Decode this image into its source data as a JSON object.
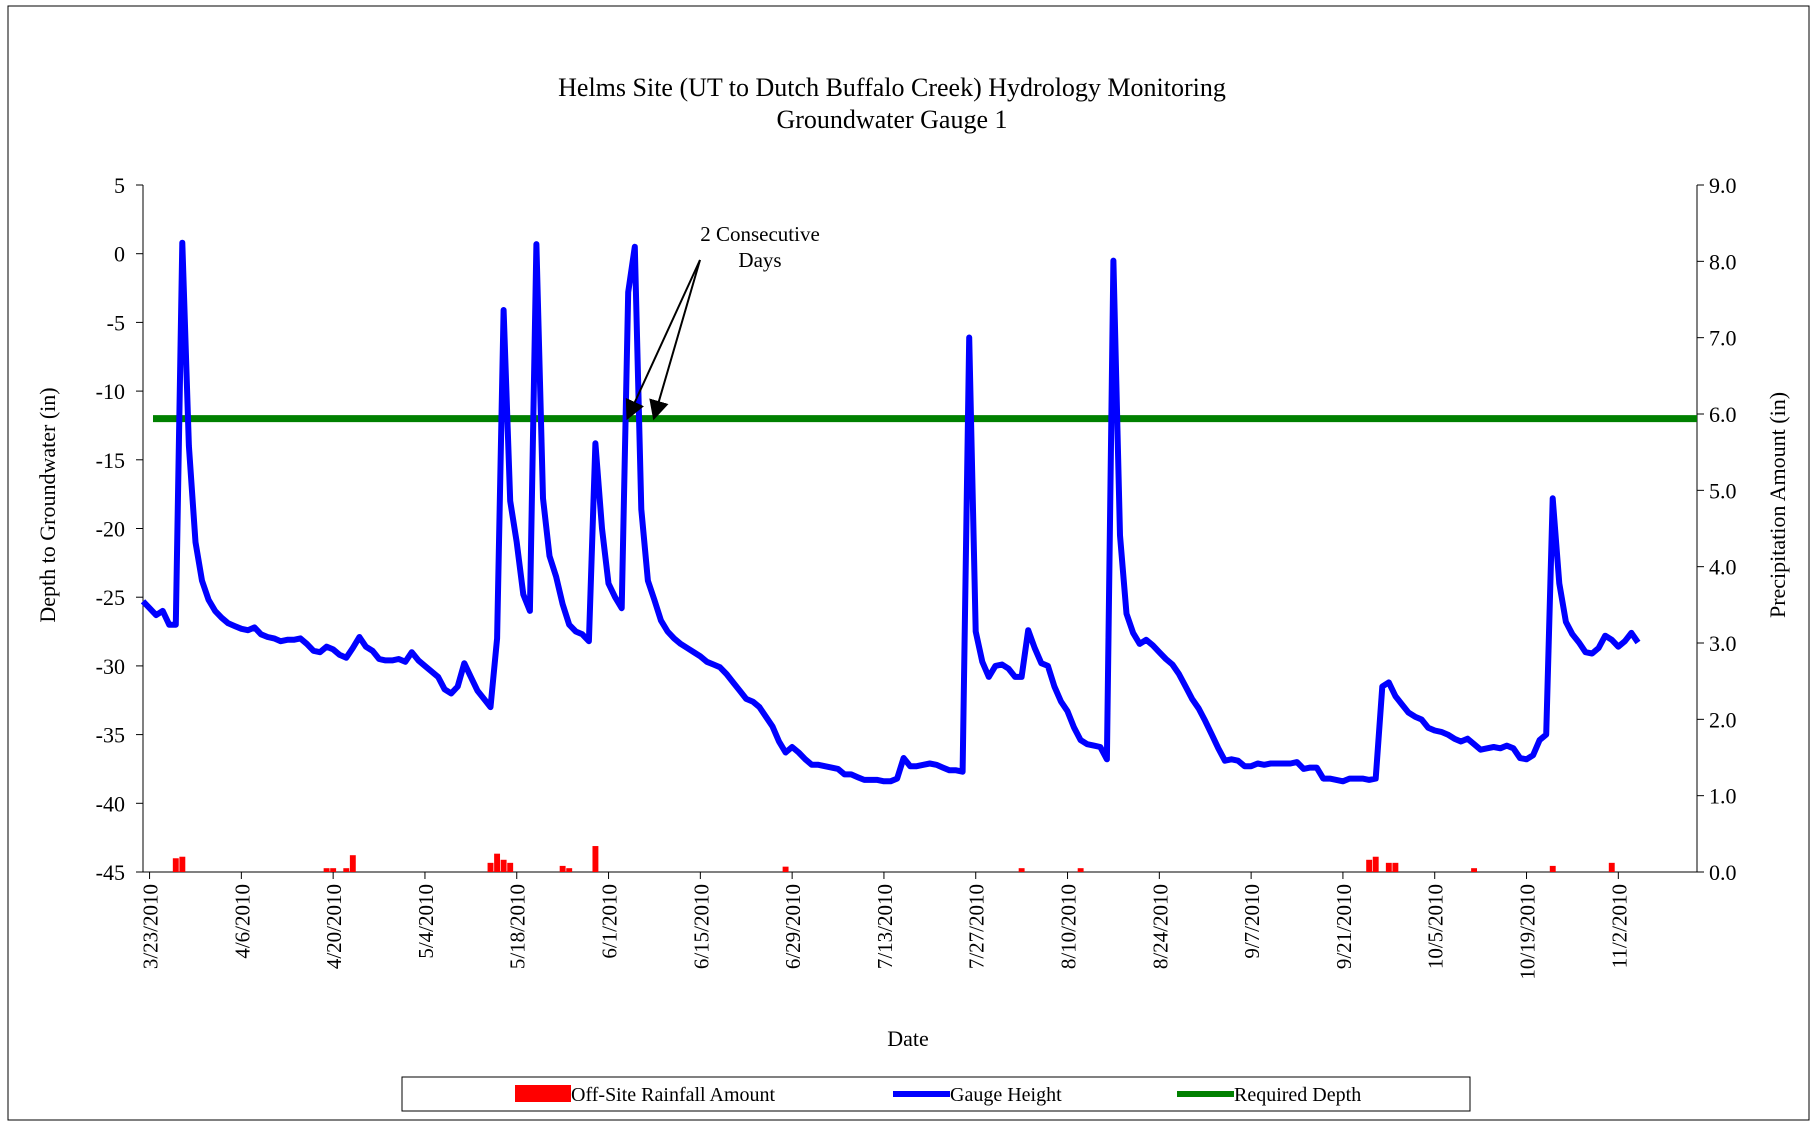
{
  "chart_data": {
    "type": "line",
    "title": "Helms Site (UT to Dutch Buffalo Creek) Hydrology Monitoring",
    "subtitle": "Groundwater Gauge 1",
    "xlabel": "Date",
    "ylabel": "Depth to Groundwater (in)",
    "y2label": "Precipitation Amount (in)",
    "ylim": [
      -45,
      5
    ],
    "y2lim": [
      0,
      9
    ],
    "yticks": [
      "5",
      "0",
      "-5",
      "-10",
      "-15",
      "-20",
      "-25",
      "-30",
      "-35",
      "-40",
      "-45"
    ],
    "y2ticks": [
      "9.0",
      "8.0",
      "7.0",
      "6.0",
      "5.0",
      "4.0",
      "3.0",
      "2.0",
      "1.0",
      "0.0"
    ],
    "xticks": [
      "3/23/2010",
      "4/6/2010",
      "4/20/2010",
      "5/4/2010",
      "5/18/2010",
      "6/1/2010",
      "6/15/2010",
      "6/29/2010",
      "7/13/2010",
      "7/27/2010",
      "8/10/2010",
      "8/24/2010",
      "9/7/2010",
      "9/21/2010",
      "10/5/2010",
      "10/19/2010",
      "11/2/2010"
    ],
    "xrange": [
      "2010-03-22",
      "2010-11-14"
    ],
    "grid": false,
    "legend_position": "bottom",
    "legend": {
      "rain": "Off-Site Rainfall Amount",
      "gauge": "Gauge Height",
      "required": "Required Depth"
    },
    "annotation": {
      "line1": "2 Consecutive",
      "line2": "Days",
      "targets": [
        "2010-06-04",
        "2010-06-08"
      ]
    },
    "series": [
      {
        "name": "Gauge Height",
        "color": "#0000ff",
        "axis": "left",
        "points": [
          [
            "2010-03-22",
            -25.3
          ],
          [
            "2010-03-23",
            -25.8
          ],
          [
            "2010-03-24",
            -26.3
          ],
          [
            "2010-03-25",
            -26.0
          ],
          [
            "2010-03-26",
            -27.0
          ],
          [
            "2010-03-27",
            -27.0
          ],
          [
            "2010-03-28",
            0.8
          ],
          [
            "2010-03-29",
            -14.0
          ],
          [
            "2010-03-30",
            -21.0
          ],
          [
            "2010-03-31",
            -23.8
          ],
          [
            "2010-04-01",
            -25.2
          ],
          [
            "2010-04-02",
            -26.0
          ],
          [
            "2010-04-03",
            -26.5
          ],
          [
            "2010-04-04",
            -26.9
          ],
          [
            "2010-04-05",
            -27.1
          ],
          [
            "2010-04-06",
            -27.3
          ],
          [
            "2010-04-07",
            -27.4
          ],
          [
            "2010-04-08",
            -27.2
          ],
          [
            "2010-04-09",
            -27.7
          ],
          [
            "2010-04-10",
            -27.9
          ],
          [
            "2010-04-11",
            -28.0
          ],
          [
            "2010-04-12",
            -28.2
          ],
          [
            "2010-04-13",
            -28.1
          ],
          [
            "2010-04-14",
            -28.1
          ],
          [
            "2010-04-15",
            -28.0
          ],
          [
            "2010-04-16",
            -28.4
          ],
          [
            "2010-04-17",
            -28.9
          ],
          [
            "2010-04-18",
            -29.0
          ],
          [
            "2010-04-19",
            -28.6
          ],
          [
            "2010-04-20",
            -28.8
          ],
          [
            "2010-04-21",
            -29.2
          ],
          [
            "2010-04-22",
            -29.4
          ],
          [
            "2010-04-23",
            -28.7
          ],
          [
            "2010-04-24",
            -27.9
          ],
          [
            "2010-04-25",
            -28.6
          ],
          [
            "2010-04-26",
            -28.9
          ],
          [
            "2010-04-27",
            -29.5
          ],
          [
            "2010-04-28",
            -29.6
          ],
          [
            "2010-04-29",
            -29.6
          ],
          [
            "2010-04-30",
            -29.5
          ],
          [
            "2010-05-01",
            -29.7
          ],
          [
            "2010-05-02",
            -29.0
          ],
          [
            "2010-05-03",
            -29.6
          ],
          [
            "2010-05-04",
            -30.0
          ],
          [
            "2010-05-05",
            -30.4
          ],
          [
            "2010-05-06",
            -30.8
          ],
          [
            "2010-05-07",
            -31.7
          ],
          [
            "2010-05-08",
            -32.0
          ],
          [
            "2010-05-09",
            -31.5
          ],
          [
            "2010-05-10",
            -29.8
          ],
          [
            "2010-05-11",
            -30.8
          ],
          [
            "2010-05-12",
            -31.8
          ],
          [
            "2010-05-13",
            -32.4
          ],
          [
            "2010-05-14",
            -33.0
          ],
          [
            "2010-05-15",
            -28.0
          ],
          [
            "2010-05-16",
            -4.1
          ],
          [
            "2010-05-17",
            -18.0
          ],
          [
            "2010-05-18",
            -21.0
          ],
          [
            "2010-05-19",
            -24.8
          ],
          [
            "2010-05-20",
            -26.0
          ],
          [
            "2010-05-21",
            0.7
          ],
          [
            "2010-05-22",
            -17.8
          ],
          [
            "2010-05-23",
            -22.0
          ],
          [
            "2010-05-24",
            -23.5
          ],
          [
            "2010-05-25",
            -25.5
          ],
          [
            "2010-05-26",
            -27.0
          ],
          [
            "2010-05-27",
            -27.5
          ],
          [
            "2010-05-28",
            -27.7
          ],
          [
            "2010-05-29",
            -28.2
          ],
          [
            "2010-05-30",
            -13.8
          ],
          [
            "2010-05-31",
            -20.0
          ],
          [
            "2010-06-01",
            -24.0
          ],
          [
            "2010-06-02",
            -25.0
          ],
          [
            "2010-06-03",
            -25.8
          ],
          [
            "2010-06-04",
            -2.8
          ],
          [
            "2010-06-05",
            0.5
          ],
          [
            "2010-06-06",
            -18.6
          ],
          [
            "2010-06-07",
            -23.8
          ],
          [
            "2010-06-08",
            -25.2
          ],
          [
            "2010-06-09",
            -26.7
          ],
          [
            "2010-06-10",
            -27.5
          ],
          [
            "2010-06-11",
            -28.0
          ],
          [
            "2010-06-12",
            -28.4
          ],
          [
            "2010-06-13",
            -28.7
          ],
          [
            "2010-06-14",
            -29.0
          ],
          [
            "2010-06-15",
            -29.3
          ],
          [
            "2010-06-16",
            -29.7
          ],
          [
            "2010-06-17",
            -29.9
          ],
          [
            "2010-06-18",
            -30.1
          ],
          [
            "2010-06-19",
            -30.6
          ],
          [
            "2010-06-20",
            -31.2
          ],
          [
            "2010-06-21",
            -31.8
          ],
          [
            "2010-06-22",
            -32.4
          ],
          [
            "2010-06-23",
            -32.6
          ],
          [
            "2010-06-24",
            -33.0
          ],
          [
            "2010-06-25",
            -33.7
          ],
          [
            "2010-06-26",
            -34.4
          ],
          [
            "2010-06-27",
            -35.5
          ],
          [
            "2010-06-28",
            -36.3
          ],
          [
            "2010-06-29",
            -35.9
          ],
          [
            "2010-06-30",
            -36.3
          ],
          [
            "2010-07-01",
            -36.8
          ],
          [
            "2010-07-02",
            -37.2
          ],
          [
            "2010-07-03",
            -37.2
          ],
          [
            "2010-07-04",
            -37.3
          ],
          [
            "2010-07-05",
            -37.4
          ],
          [
            "2010-07-06",
            -37.5
          ],
          [
            "2010-07-07",
            -37.9
          ],
          [
            "2010-07-08",
            -37.9
          ],
          [
            "2010-07-09",
            -38.1
          ],
          [
            "2010-07-10",
            -38.3
          ],
          [
            "2010-07-11",
            -38.3
          ],
          [
            "2010-07-12",
            -38.3
          ],
          [
            "2010-07-13",
            -38.4
          ],
          [
            "2010-07-14",
            -38.4
          ],
          [
            "2010-07-15",
            -38.2
          ],
          [
            "2010-07-16",
            -36.7
          ],
          [
            "2010-07-17",
            -37.3
          ],
          [
            "2010-07-18",
            -37.3
          ],
          [
            "2010-07-19",
            -37.2
          ],
          [
            "2010-07-20",
            -37.1
          ],
          [
            "2010-07-21",
            -37.2
          ],
          [
            "2010-07-22",
            -37.4
          ],
          [
            "2010-07-23",
            -37.6
          ],
          [
            "2010-07-24",
            -37.6
          ],
          [
            "2010-07-25",
            -37.7
          ],
          [
            "2010-07-26",
            -6.1
          ],
          [
            "2010-07-27",
            -27.5
          ],
          [
            "2010-07-28",
            -29.7
          ],
          [
            "2010-07-29",
            -30.8
          ],
          [
            "2010-07-30",
            -30.0
          ],
          [
            "2010-07-31",
            -29.9
          ],
          [
            "2010-08-01",
            -30.2
          ],
          [
            "2010-08-02",
            -30.8
          ],
          [
            "2010-08-03",
            -30.8
          ],
          [
            "2010-08-04",
            -27.4
          ],
          [
            "2010-08-05",
            -28.7
          ],
          [
            "2010-08-06",
            -29.8
          ],
          [
            "2010-08-07",
            -30.0
          ],
          [
            "2010-08-08",
            -31.5
          ],
          [
            "2010-08-09",
            -32.6
          ],
          [
            "2010-08-10",
            -33.3
          ],
          [
            "2010-08-11",
            -34.5
          ],
          [
            "2010-08-12",
            -35.4
          ],
          [
            "2010-08-13",
            -35.7
          ],
          [
            "2010-08-14",
            -35.8
          ],
          [
            "2010-08-15",
            -35.9
          ],
          [
            "2010-08-16",
            -36.8
          ],
          [
            "2010-08-17",
            -0.5
          ],
          [
            "2010-08-18",
            -20.5
          ],
          [
            "2010-08-19",
            -26.2
          ],
          [
            "2010-08-20",
            -27.6
          ],
          [
            "2010-08-21",
            -28.4
          ],
          [
            "2010-08-22",
            -28.1
          ],
          [
            "2010-08-23",
            -28.5
          ],
          [
            "2010-08-24",
            -29.0
          ],
          [
            "2010-08-25",
            -29.5
          ],
          [
            "2010-08-26",
            -29.9
          ],
          [
            "2010-08-27",
            -30.6
          ],
          [
            "2010-08-28",
            -31.5
          ],
          [
            "2010-08-29",
            -32.4
          ],
          [
            "2010-08-30",
            -33.1
          ],
          [
            "2010-08-31",
            -34.0
          ],
          [
            "2010-09-01",
            -35.0
          ],
          [
            "2010-09-02",
            -36.0
          ],
          [
            "2010-09-03",
            -36.9
          ],
          [
            "2010-09-04",
            -36.8
          ],
          [
            "2010-09-05",
            -36.9
          ],
          [
            "2010-09-06",
            -37.3
          ],
          [
            "2010-09-07",
            -37.3
          ],
          [
            "2010-09-08",
            -37.1
          ],
          [
            "2010-09-09",
            -37.2
          ],
          [
            "2010-09-10",
            -37.1
          ],
          [
            "2010-09-11",
            -37.1
          ],
          [
            "2010-09-12",
            -37.1
          ],
          [
            "2010-09-13",
            -37.1
          ],
          [
            "2010-09-14",
            -37.0
          ],
          [
            "2010-09-15",
            -37.5
          ],
          [
            "2010-09-16",
            -37.4
          ],
          [
            "2010-09-17",
            -37.4
          ],
          [
            "2010-09-18",
            -38.2
          ],
          [
            "2010-09-19",
            -38.2
          ],
          [
            "2010-09-20",
            -38.3
          ],
          [
            "2010-09-21",
            -38.4
          ],
          [
            "2010-09-22",
            -38.2
          ],
          [
            "2010-09-23",
            -38.2
          ],
          [
            "2010-09-24",
            -38.2
          ],
          [
            "2010-09-25",
            -38.3
          ],
          [
            "2010-09-26",
            -38.2
          ],
          [
            "2010-09-27",
            -31.5
          ],
          [
            "2010-09-28",
            -31.2
          ],
          [
            "2010-09-29",
            -32.2
          ],
          [
            "2010-09-30",
            -32.8
          ],
          [
            "2010-10-01",
            -33.4
          ],
          [
            "2010-10-02",
            -33.7
          ],
          [
            "2010-10-03",
            -33.9
          ],
          [
            "2010-10-04",
            -34.5
          ],
          [
            "2010-10-05",
            -34.7
          ],
          [
            "2010-10-06",
            -34.8
          ],
          [
            "2010-10-07",
            -35.0
          ],
          [
            "2010-10-08",
            -35.3
          ],
          [
            "2010-10-09",
            -35.5
          ],
          [
            "2010-10-10",
            -35.3
          ],
          [
            "2010-10-11",
            -35.7
          ],
          [
            "2010-10-12",
            -36.1
          ],
          [
            "2010-10-13",
            -36.0
          ],
          [
            "2010-10-14",
            -35.9
          ],
          [
            "2010-10-15",
            -36.0
          ],
          [
            "2010-10-16",
            -35.8
          ],
          [
            "2010-10-17",
            -36.0
          ],
          [
            "2010-10-18",
            -36.7
          ],
          [
            "2010-10-19",
            -36.8
          ],
          [
            "2010-10-20",
            -36.5
          ],
          [
            "2010-10-21",
            -35.4
          ],
          [
            "2010-10-22",
            -35.0
          ],
          [
            "2010-10-23",
            -17.8
          ],
          [
            "2010-10-24",
            -24.0
          ],
          [
            "2010-10-25",
            -26.8
          ],
          [
            "2010-10-26",
            -27.7
          ],
          [
            "2010-10-27",
            -28.3
          ],
          [
            "2010-10-28",
            -29.0
          ],
          [
            "2010-10-29",
            -29.1
          ],
          [
            "2010-10-30",
            -28.7
          ],
          [
            "2010-10-31",
            -27.8
          ],
          [
            "2010-11-01",
            -28.1
          ],
          [
            "2010-11-02",
            -28.6
          ],
          [
            "2010-11-03",
            -28.2
          ],
          [
            "2010-11-04",
            -27.6
          ],
          [
            "2010-11-05",
            -28.3
          ]
        ]
      },
      {
        "name": "Required Depth",
        "color": "#008000",
        "axis": "left",
        "points": [
          [
            "2010-03-22",
            -12
          ],
          [
            "2010-11-14",
            -12
          ]
        ]
      },
      {
        "name": "Off-Site Rainfall Amount",
        "color": "#ff0000",
        "axis": "right",
        "bars": [
          [
            "2010-03-27",
            0.18
          ],
          [
            "2010-03-28",
            0.2
          ],
          [
            "2010-04-19",
            0.05
          ],
          [
            "2010-04-20",
            0.05
          ],
          [
            "2010-04-22",
            0.05
          ],
          [
            "2010-04-23",
            0.22
          ],
          [
            "2010-05-14",
            0.12
          ],
          [
            "2010-05-15",
            0.24
          ],
          [
            "2010-05-16",
            0.16
          ],
          [
            "2010-05-17",
            0.12
          ],
          [
            "2010-05-25",
            0.08
          ],
          [
            "2010-05-26",
            0.05
          ],
          [
            "2010-05-30",
            0.34
          ],
          [
            "2010-06-28",
            0.07
          ],
          [
            "2010-08-03",
            0.05
          ],
          [
            "2010-08-12",
            0.05
          ],
          [
            "2010-09-25",
            0.16
          ],
          [
            "2010-09-26",
            0.2
          ],
          [
            "2010-09-28",
            0.12
          ],
          [
            "2010-09-29",
            0.12
          ],
          [
            "2010-10-11",
            0.05
          ],
          [
            "2010-10-23",
            0.08
          ],
          [
            "2010-11-01",
            0.12
          ]
        ]
      }
    ]
  }
}
